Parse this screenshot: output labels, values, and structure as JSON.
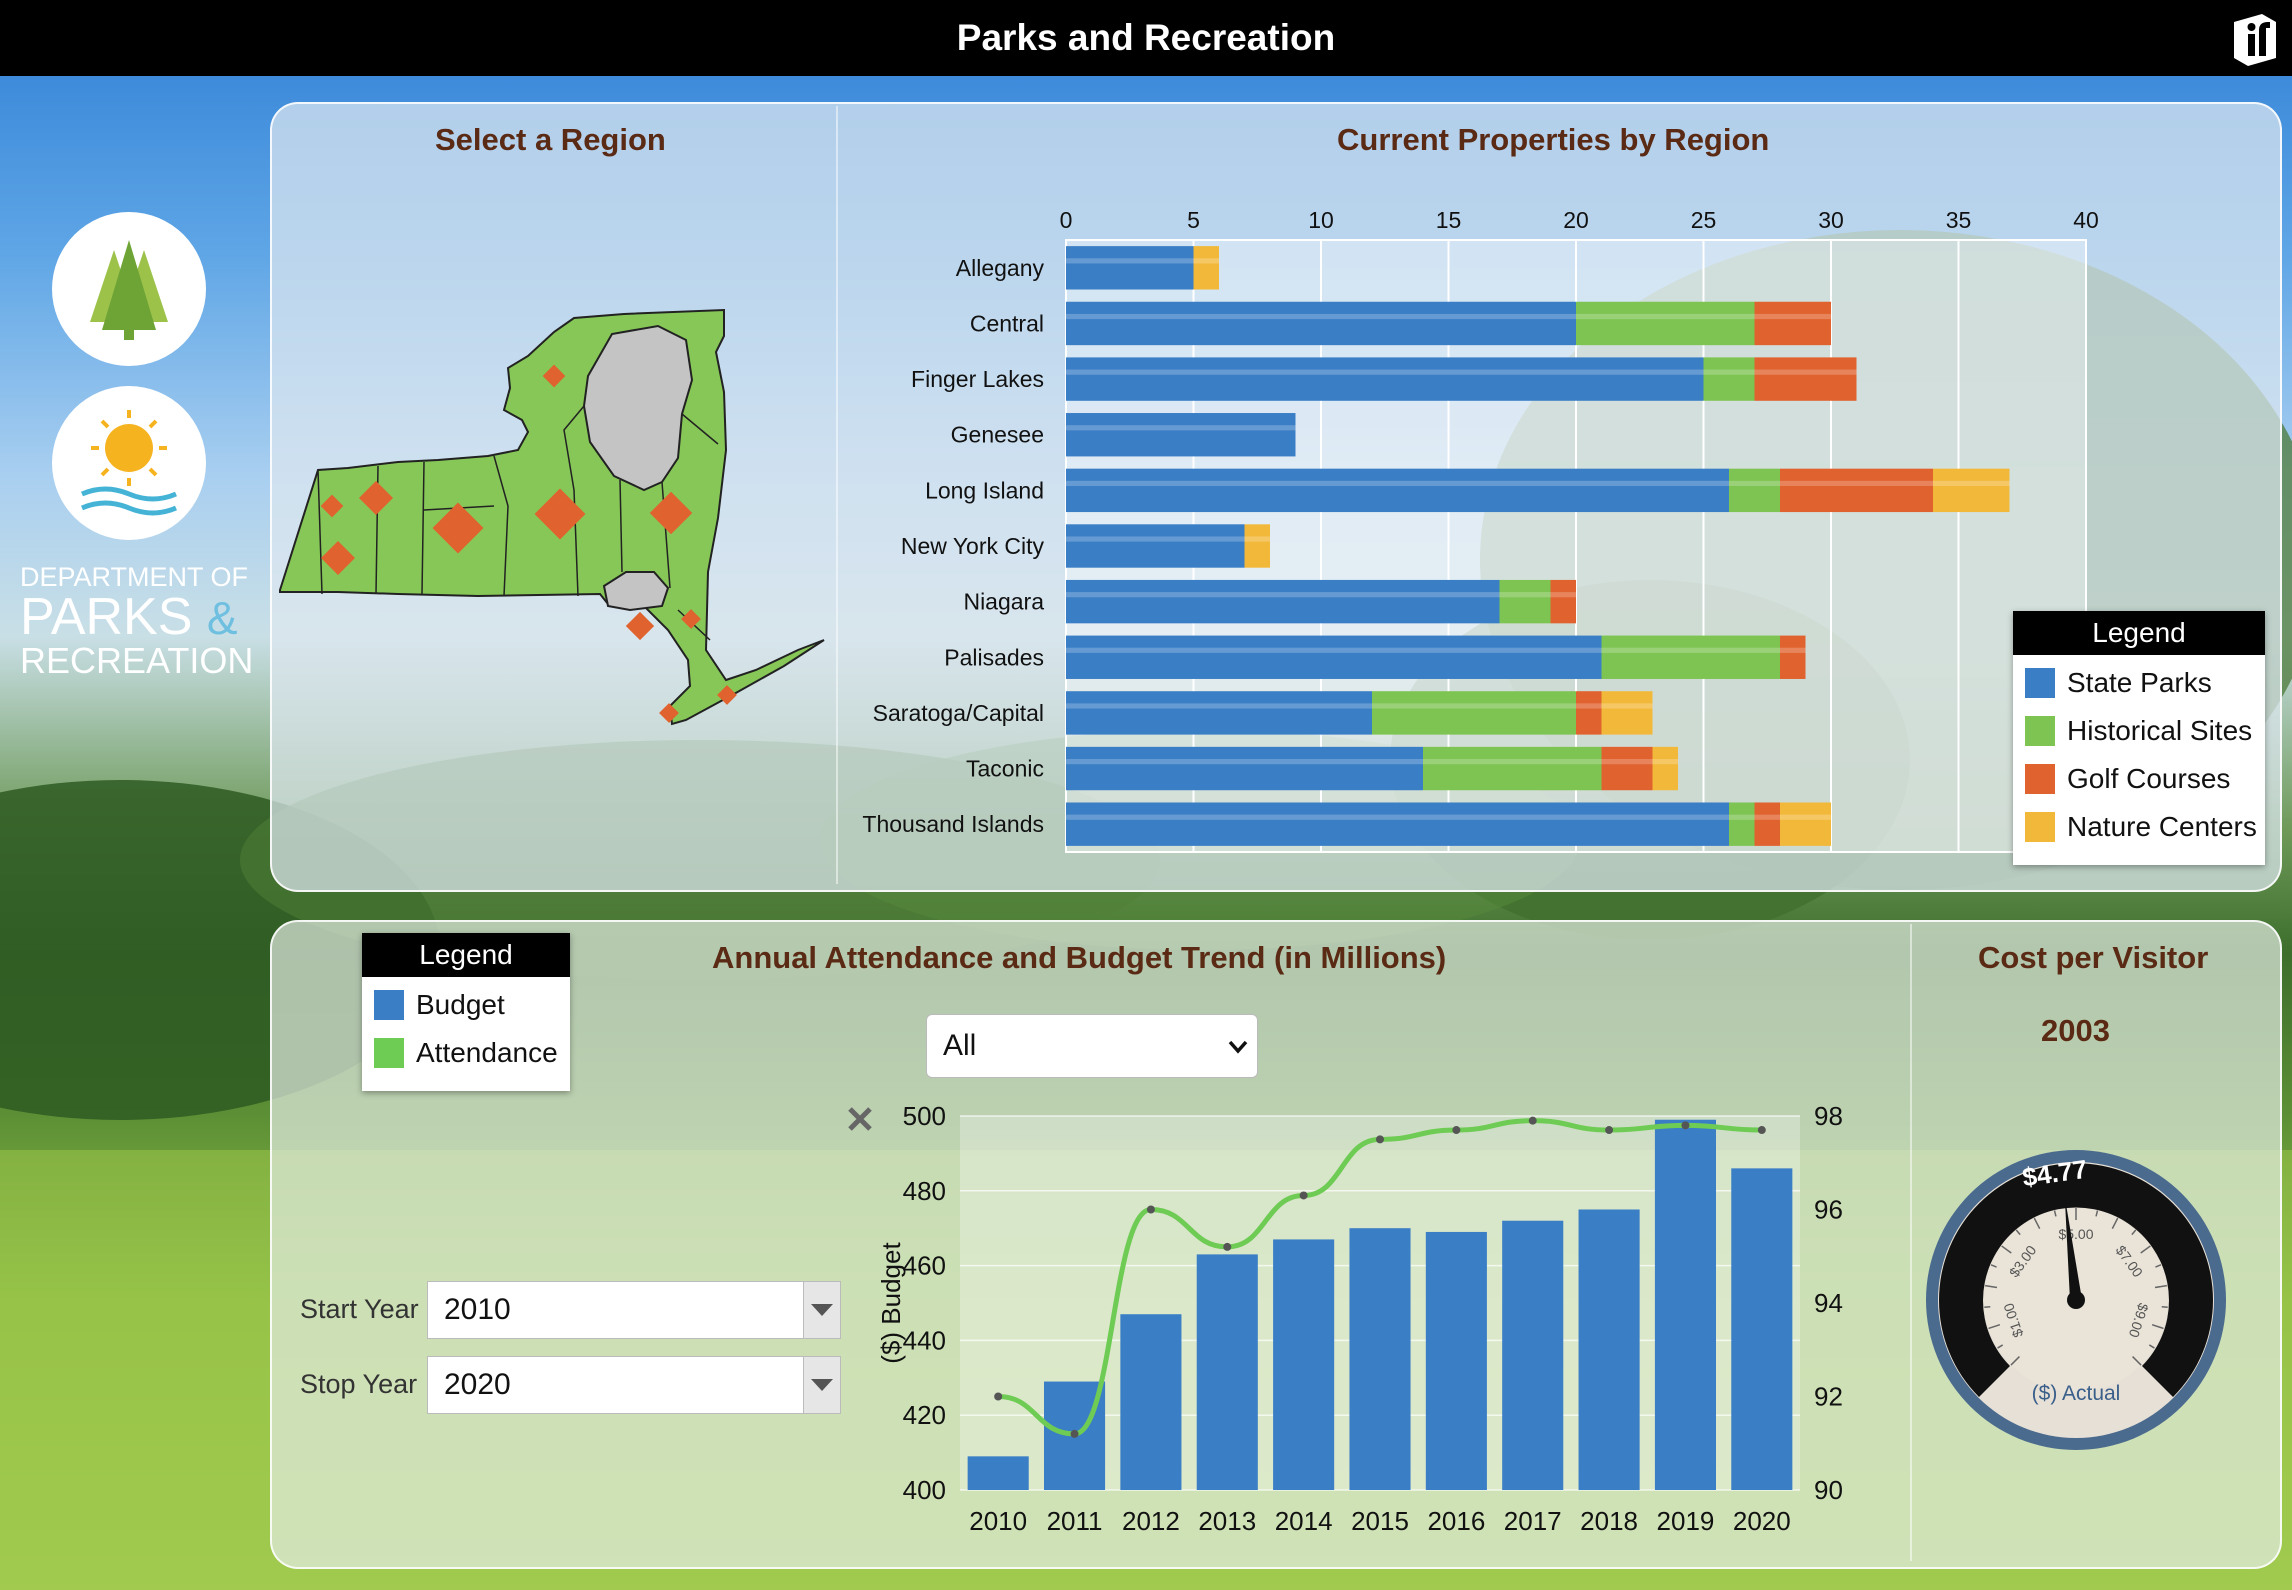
{
  "header": {
    "title": "Parks and Recreation"
  },
  "sidebar": {
    "dept_line1": "DEPARTMENT OF",
    "dept_line2": "PARKS",
    "dept_amp": "&",
    "dept_line3": "RECREATION"
  },
  "map_panel": {
    "title": "Select a Region"
  },
  "properties_chart": {
    "title": "Current Properties by Region",
    "legend_title": "Legend",
    "chart_data": {
      "type": "bar",
      "orientation": "horizontal-stacked",
      "categories": [
        "Allegany",
        "Central",
        "Finger Lakes",
        "Genesee",
        "Long Island",
        "New York City",
        "Niagara",
        "Palisades",
        "Saratoga/Capital",
        "Taconic",
        "Thousand Islands"
      ],
      "series": [
        {
          "name": "State Parks",
          "color": "#3a7ec6",
          "values": [
            5,
            20,
            25,
            9,
            26,
            7,
            17,
            21,
            12,
            14,
            26
          ]
        },
        {
          "name": "Historical Sites",
          "color": "#7ec452",
          "values": [
            0,
            7,
            2,
            0,
            2,
            0,
            2,
            7,
            8,
            7,
            1
          ]
        },
        {
          "name": "Golf Courses",
          "color": "#e0622e",
          "values": [
            0,
            3,
            4,
            0,
            6,
            0,
            1,
            1,
            1,
            2,
            1
          ]
        },
        {
          "name": "Nature Centers",
          "color": "#f2b83a",
          "values": [
            1,
            0,
            0,
            0,
            3,
            1,
            0,
            0,
            2,
            1,
            2
          ]
        }
      ],
      "xlim": [
        0,
        40
      ],
      "x_ticks": [
        0,
        5,
        10,
        15,
        20,
        25,
        30,
        35,
        40
      ],
      "legend": "right"
    }
  },
  "attendance_panel": {
    "title": "Annual Attendance and Budget Trend (in Millions)",
    "legend_title": "Legend",
    "filter": {
      "value": "All"
    },
    "start_year_label": "Start Year",
    "start_year_value": "2010",
    "stop_year_label": "Stop Year",
    "stop_year_value": "2020",
    "chart_data": {
      "type": "bar",
      "categories": [
        "2010",
        "2011",
        "2012",
        "2013",
        "2014",
        "2015",
        "2016",
        "2017",
        "2018",
        "2019",
        "2020"
      ],
      "series": [
        {
          "name": "Budget",
          "type": "bar",
          "color": "#3a7ec6",
          "values": [
            409,
            429,
            447,
            463,
            467,
            470,
            469,
            472,
            475,
            499,
            486
          ]
        },
        {
          "name": "Attendance",
          "type": "line",
          "color": "#6ecb54",
          "values": [
            92.0,
            91.2,
            96.0,
            95.2,
            96.3,
            97.5,
            97.7,
            97.9,
            97.7,
            97.8,
            97.7
          ]
        }
      ],
      "ylabel": "($) Budget",
      "ylim": [
        400,
        500
      ],
      "y_ticks": [
        400,
        420,
        440,
        460,
        480,
        500
      ],
      "y2lim": [
        90,
        98
      ],
      "y2_ticks": [
        90,
        92,
        94,
        96,
        98
      ]
    }
  },
  "gauge_panel": {
    "title": "Cost per Visitor",
    "year": "2003",
    "value_label": "$4.77",
    "value": 4.77,
    "scale_labels": [
      "$1.00",
      "$3.00",
      "$5.00",
      "$7.00",
      "$9.00"
    ],
    "unit_label": "($) Actual"
  }
}
